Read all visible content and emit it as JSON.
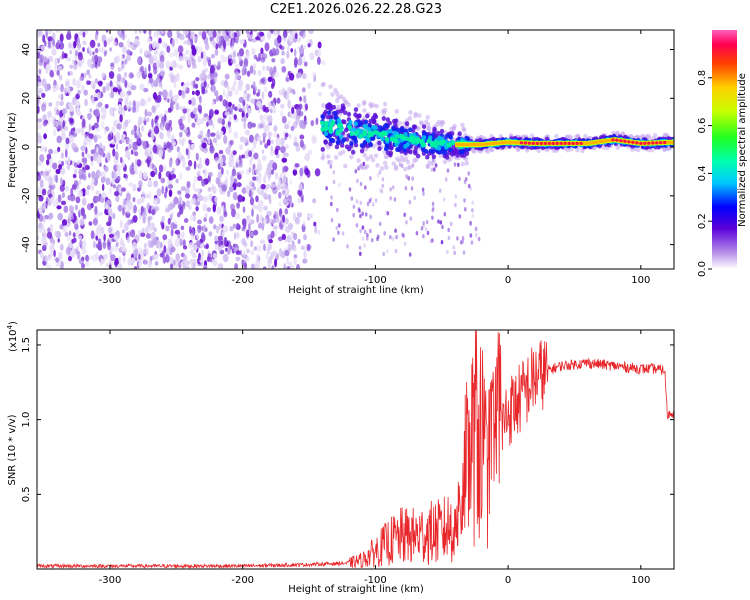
{
  "title": "C2E1.2026.026.22.28.G23",
  "chart_data": [
    {
      "type": "heatmap",
      "description_id": "spectrogram",
      "xlabel": "Height of straight line (km)",
      "ylabel": "Frequency (Hz)",
      "xlim": [
        -355,
        125
      ],
      "ylim": [
        -50,
        48
      ],
      "xticks": [
        -300,
        -200,
        -100,
        0,
        100
      ],
      "yticks": [
        -40,
        -20,
        0,
        20,
        40
      ],
      "colorbar": {
        "label": "Normalized spectral amplitude",
        "range": [
          0.0,
          1.0
        ],
        "ticks": [
          "0.0",
          "0.2",
          "0.4",
          "0.6",
          "0.8"
        ]
      },
      "features": {
        "noise_region_x": [
          -355,
          -145
        ],
        "signal_onset_x": -145,
        "signal_track_points_x": [
          -140,
          -120,
          -100,
          -80,
          -60,
          -40,
          -20,
          0,
          20,
          40,
          60,
          80,
          100,
          125
        ],
        "signal_track_points_hz": [
          9,
          7,
          5,
          3,
          2,
          1,
          1,
          2,
          1.5,
          1.5,
          1.5,
          3,
          1.5,
          2
        ],
        "signal_peak_amplitude": 0.98
      }
    },
    {
      "type": "line",
      "description_id": "snr",
      "xlabel": "Height of straight line (km)",
      "ylabel": "SNR (10 * v/v)",
      "scale_note": "(x10",
      "scale_exponent": "4",
      "xlim": [
        -355,
        125
      ],
      "ylim": [
        0,
        1.6
      ],
      "xticks": [
        -300,
        -200,
        -100,
        0,
        100
      ],
      "yticks": [
        0.5,
        1.0,
        1.5
      ],
      "ytick_labels": [
        "0.5",
        "1.0",
        "1.5"
      ],
      "series": [
        {
          "name": "SNR",
          "color": "#e8262a",
          "x": [
            -355,
            -300,
            -250,
            -200,
            -150,
            -120,
            -110,
            -100,
            -90,
            -80,
            -70,
            -60,
            -50,
            -45,
            -40,
            -35,
            -30,
            -25,
            -20,
            -15,
            -10,
            -5,
            0,
            10,
            20,
            30,
            40,
            50,
            60,
            70,
            80,
            90,
            100,
            110,
            118,
            120,
            125
          ],
          "y": [
            0.02,
            0.02,
            0.02,
            0.02,
            0.03,
            0.04,
            0.06,
            0.12,
            0.18,
            0.22,
            0.22,
            0.24,
            0.25,
            0.28,
            0.3,
            0.4,
            0.75,
            0.9,
            0.9,
            0.65,
            0.85,
            0.95,
            1.05,
            1.15,
            1.28,
            1.33,
            1.36,
            1.37,
            1.38,
            1.37,
            1.36,
            1.35,
            1.34,
            1.34,
            1.33,
            1.03,
            1.05
          ]
        }
      ]
    }
  ]
}
